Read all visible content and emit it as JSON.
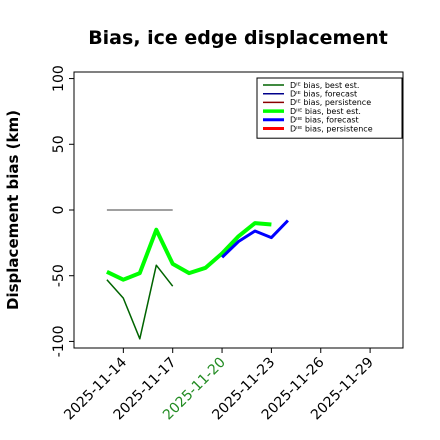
{
  "chart_data": {
    "type": "line",
    "title": "Bias, ice edge displacement",
    "ylabel": "Displacement bias (km)",
    "xlabel": "",
    "ylim": [
      -105,
      105
    ],
    "xlim": [
      "2025-11-11",
      "2025-11-31"
    ],
    "yticks": [
      100,
      50,
      0,
      -50,
      -100
    ],
    "xticks": [
      {
        "label": "2025-11-14",
        "date": "2025-11-14",
        "color": "#000000"
      },
      {
        "label": "2025-11-17",
        "date": "2025-11-17",
        "color": "#000000"
      },
      {
        "label": "2025-11-20",
        "date": "2025-11-20",
        "color": "#228b22"
      },
      {
        "label": "2025-11-23",
        "date": "2025-11-23",
        "color": "#000000"
      },
      {
        "label": "2025-11-26",
        "date": "2025-11-26",
        "color": "#000000"
      },
      {
        "label": "2025-11-29",
        "date": "2025-11-29",
        "color": "#000000"
      }
    ],
    "grid": false,
    "legend_position": "top-right",
    "series": [
      {
        "name": "Dᴵᴱ bias, best est.",
        "color": "#006400",
        "width": 1.5,
        "x": [
          "2025-11-13",
          "2025-11-14",
          "2025-11-15",
          "2025-11-16",
          "2025-11-17"
        ],
        "y": [
          -53,
          -67,
          -98,
          -42,
          -58
        ]
      },
      {
        "name": "Dᴵᴱ bias, forecast",
        "color": "#00008b",
        "width": 1.5,
        "x": [],
        "y": []
      },
      {
        "name": "Dᴵᴱ bias, persistence",
        "color": "#8b0000",
        "width": 1.5,
        "x": [],
        "y": []
      },
      {
        "name": "Dᴵᴵᴱ bias, best est.",
        "color": "#00ff00",
        "width": 4,
        "x": [
          "2025-11-13",
          "2025-11-14",
          "2025-11-15",
          "2025-11-16",
          "2025-11-17",
          "2025-11-18",
          "2025-11-19",
          "2025-11-20",
          "2025-11-21",
          "2025-11-22",
          "2025-11-23"
        ],
        "y": [
          -47,
          -53,
          -48,
          -15,
          -41,
          -48,
          -44,
          -33,
          -20,
          -10,
          -11
        ]
      },
      {
        "name": "Dᴵᴵᴱ bias, forecast",
        "color": "#0000ff",
        "width": 3,
        "x": [
          "2025-11-20",
          "2025-11-21",
          "2025-11-22",
          "2025-11-23",
          "2025-11-24"
        ],
        "y": [
          -36,
          -24,
          -16,
          -21,
          -8
        ]
      },
      {
        "name": "Dᴵᴵᴱ bias, persistence",
        "color": "#ff0000",
        "width": 3,
        "x": [],
        "y": []
      },
      {
        "name": "",
        "color": "#808080",
        "width": 1.5,
        "x": [
          "2025-11-13",
          "2025-11-17"
        ],
        "y": [
          0,
          0
        ]
      }
    ]
  }
}
